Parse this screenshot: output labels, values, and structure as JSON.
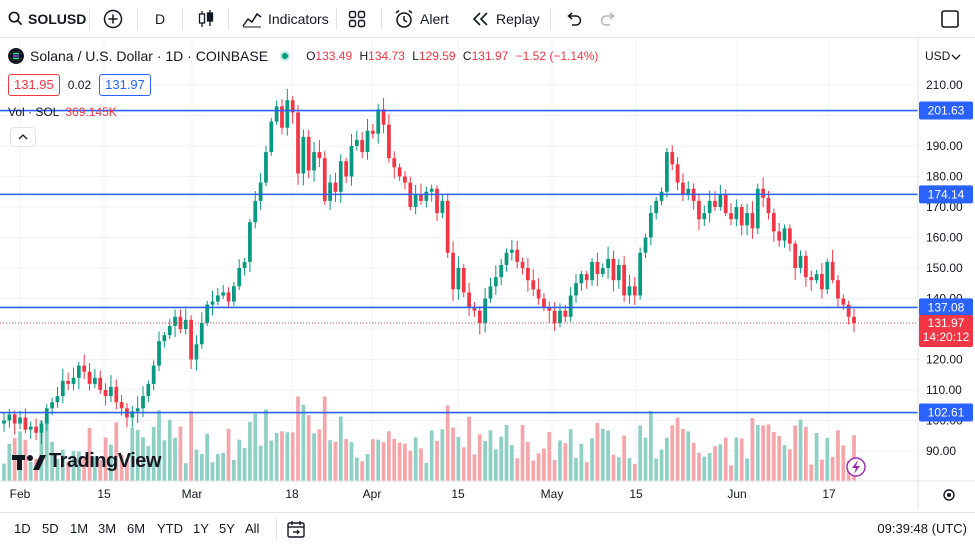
{
  "toolbar": {
    "symbol": "SOLUSD",
    "interval": "D",
    "indicators_label": "Indicators",
    "alert_label": "Alert",
    "replay_label": "Replay"
  },
  "legend": {
    "title": "Solana / U.S. Dollar · 1D · COINBASE",
    "open_key": "O",
    "open": "133.49",
    "high_key": "H",
    "high": "134.73",
    "low_key": "L",
    "low": "129.59",
    "close_key": "C",
    "close": "131.97",
    "change": "−1.52 (−1.14%)",
    "bid": "131.95",
    "spread": "0.02",
    "ask": "131.97",
    "vol_label": "Vol · SOL",
    "vol_value": "369.145K"
  },
  "currency": "USD",
  "logo_text": "TradingView",
  "price_axis": {
    "ticks": [
      "210.00",
      "200.00",
      "190.00",
      "180.00",
      "170.00",
      "160.00",
      "150.00",
      "140.00",
      "130.00",
      "120.00",
      "110.00",
      "100.00",
      "90.00"
    ],
    "tick_values": [
      210,
      200,
      190,
      180,
      170,
      160,
      150,
      140,
      130,
      120,
      110,
      100,
      90
    ]
  },
  "time_axis": {
    "labels": [
      "Feb",
      "15",
      "Mar",
      "18",
      "Apr",
      "15",
      "May",
      "15",
      "Jun",
      "17"
    ]
  },
  "horizontal_lines": [
    {
      "label": "201.63",
      "value": 201.63
    },
    {
      "label": "174.14",
      "value": 174.14
    },
    {
      "label": "137.08",
      "value": 137.08
    },
    {
      "label": "102.61",
      "value": 102.61
    }
  ],
  "last_price": {
    "value": "131.97",
    "countdown": "14:20:12"
  },
  "ranges": [
    "1D",
    "5D",
    "1M",
    "3M",
    "6M",
    "YTD",
    "1Y",
    "5Y",
    "All"
  ],
  "clock": "09:39:48 (UTC)",
  "colors": {
    "up": "#089981",
    "down": "#f23645",
    "line": "#2962ff",
    "vol_up": "#8fd0c5",
    "vol_down": "#f5a6ab"
  },
  "chart_data": {
    "type": "candlestick",
    "title": "Solana / U.S. Dollar · 1D · COINBASE",
    "ylim": [
      82,
      214
    ],
    "closes": [
      100,
      102,
      99,
      101,
      97,
      98,
      96,
      99,
      104,
      106,
      108,
      113,
      112,
      114,
      118,
      116,
      112,
      114,
      110,
      108,
      111,
      106,
      104,
      101,
      103,
      104,
      108,
      112,
      118,
      126,
      128,
      131,
      134,
      130,
      133,
      120,
      125,
      132,
      138,
      139,
      141,
      142,
      139,
      144,
      150,
      152,
      165,
      172,
      178,
      188,
      198,
      203,
      196,
      205,
      201,
      181,
      193,
      182,
      188,
      186,
      172,
      178,
      175,
      185,
      180,
      190,
      192,
      188,
      195,
      194,
      202,
      197,
      186,
      183,
      180,
      178,
      170,
      174,
      172,
      175,
      176,
      168,
      172,
      155,
      143,
      150,
      142,
      137,
      136,
      132,
      140,
      144,
      147,
      151,
      155,
      156,
      152,
      150,
      146,
      143,
      140,
      137,
      136,
      132,
      136,
      134,
      141,
      145,
      148,
      146,
      152,
      148,
      150,
      153,
      146,
      151,
      141,
      144,
      141,
      155,
      160,
      168,
      172,
      175,
      188,
      184,
      178,
      174,
      176,
      172,
      166,
      168,
      172,
      170,
      174,
      168,
      166,
      170,
      164,
      168,
      163,
      176,
      173,
      168,
      162,
      159,
      163,
      158,
      150,
      154,
      147,
      146,
      148,
      143,
      152,
      146,
      140,
      138,
      134,
      131.97
    ]
  }
}
